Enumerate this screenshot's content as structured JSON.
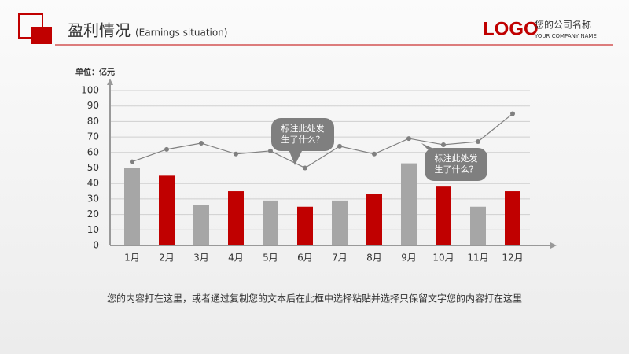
{
  "header": {
    "title": "盈利情况",
    "subtitle": "(Earnings situation)",
    "logo": "LOGO",
    "company": "您的公司名称",
    "company_en": "YOUR COMPANY NAME"
  },
  "chart_data": {
    "type": "bar",
    "unit": "单位：亿元",
    "categories": [
      "1月",
      "2月",
      "3月",
      "4月",
      "5月",
      "6月",
      "7月",
      "8月",
      "9月",
      "10月",
      "11月",
      "12月"
    ],
    "values": [
      50,
      45,
      26,
      35,
      29,
      25,
      29,
      33,
      53,
      38,
      25,
      35
    ],
    "colors": [
      "#a6a6a6",
      "#c00000",
      "#a6a6a6",
      "#c00000",
      "#a6a6a6",
      "#c00000",
      "#a6a6a6",
      "#c00000",
      "#a6a6a6",
      "#c00000",
      "#a6a6a6",
      "#c00000"
    ],
    "line": {
      "type": "line",
      "color": "#808080",
      "values": [
        54,
        62,
        66,
        59,
        61,
        50,
        64,
        59,
        69,
        65,
        67,
        85
      ]
    },
    "ylim": [
      0,
      100
    ],
    "yticks": [
      0,
      10,
      20,
      30,
      40,
      50,
      60,
      70,
      80,
      90,
      100
    ],
    "grid": true,
    "annotations": [
      "标注此处发生了什么？",
      "标注此处发生了什么？"
    ]
  },
  "footer": "您的内容打在这里，或者通过复制您的文本后在此框中选择粘贴并选择只保留文字您的内容打在这里"
}
